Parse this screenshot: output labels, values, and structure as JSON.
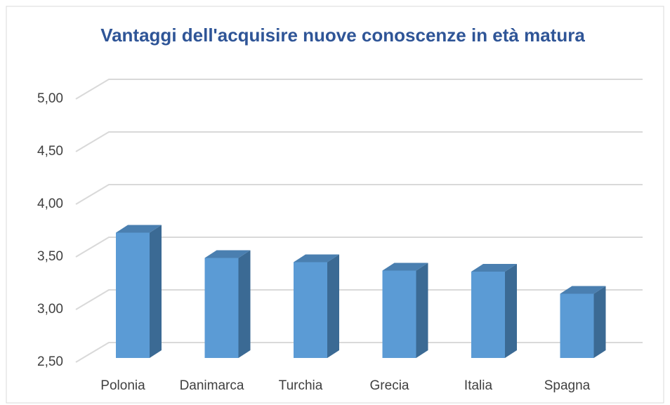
{
  "chart_data": {
    "type": "bar3d",
    "title": "Vantaggi dell'acquisire nuove conoscenze in età matura",
    "categories": [
      "Polonia",
      "Danimarca",
      "Turchia",
      "Grecia",
      "Italia",
      "Spagna"
    ],
    "values": [
      3.69,
      3.45,
      3.41,
      3.33,
      3.32,
      3.11
    ],
    "color": "#5b9bd5",
    "ylim": [
      2.5,
      5
    ],
    "yticks": [
      {
        "value": 2.5,
        "label": "2,50"
      },
      {
        "value": 3,
        "label": "3,00"
      },
      {
        "value": 3.5,
        "label": "3,50"
      },
      {
        "value": 4,
        "label": "4,00"
      },
      {
        "value": 4.5,
        "label": "4,50"
      },
      {
        "value": 5,
        "label": "5,00"
      }
    ],
    "grid": true
  }
}
